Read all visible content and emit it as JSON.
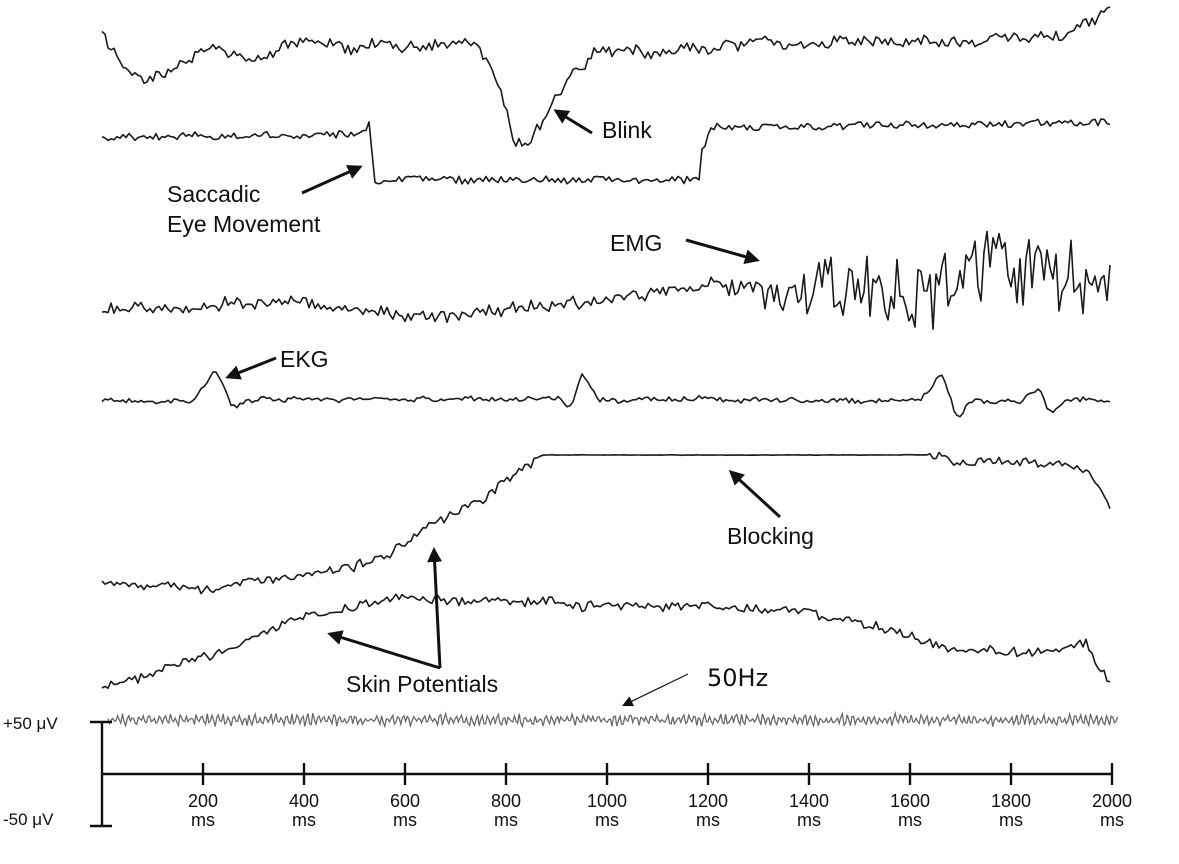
{
  "chart_data": {
    "type": "line",
    "x_unit": "ms",
    "xlim": [
      0,
      2000
    ],
    "x_ticks": [
      200,
      400,
      600,
      800,
      1000,
      1200,
      1400,
      1600,
      1800,
      2000
    ],
    "x_tick_unit_label": "ms",
    "y_scale_labels": {
      "top": "+50 μV",
      "bottom": "-50 μV"
    },
    "grid": false,
    "annotations": {
      "blink": "Blink",
      "saccade_line1": "Saccadic",
      "saccade_line2": "Eye Movement",
      "emg": "EMG",
      "ekg": "EKG",
      "blocking": "Blocking",
      "skin": "Skin Potentials",
      "line_noise": "50Hz"
    },
    "traces": [
      {
        "artifact": "Blink",
        "kind": "slow wander with one large negative deflection",
        "event_ms": [
          820,
          860
        ],
        "color": "#1a1a1a"
      },
      {
        "artifact": "Saccadic Eye Movement",
        "kind": "step down then step back up",
        "event_ms": [
          540,
          1200
        ],
        "color": "#1a1a1a"
      },
      {
        "artifact": "EMG",
        "kind": "high-frequency high-amplitude burst",
        "event_ms": [
          1300,
          2000
        ],
        "color": "#1a1a1a"
      },
      {
        "artifact": "EKG",
        "kind": "periodic cardiac spikes",
        "event_ms": [
          225,
          960,
          1670,
          1940
        ],
        "color": "#1a1a1a"
      },
      {
        "artifact": "Blocking",
        "kind": "rising drift into flat saturation",
        "event_ms": [
          870,
          1660
        ],
        "color": "#1a1a1a"
      },
      {
        "artifact": "Skin Potentials",
        "kind": "very slow large drift",
        "color": "#1a1a1a"
      },
      {
        "artifact": "50Hz",
        "kind": "line-noise oscillation",
        "frequency_hz": 50,
        "color": "#6a6a6a"
      }
    ]
  }
}
